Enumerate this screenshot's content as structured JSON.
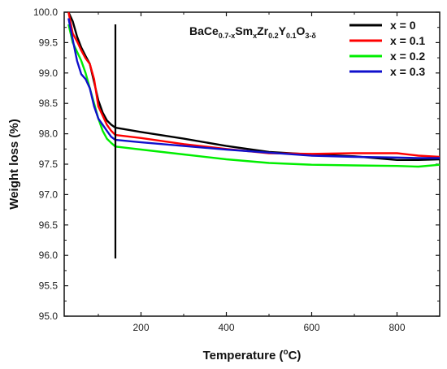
{
  "chart_data": {
    "type": "line",
    "title": "",
    "xlabel": "Temperature (°C)",
    "xlabel_prefix": "Temperature (",
    "xlabel_degree": "o",
    "xlabel_suffix": "C)",
    "ylabel": "Weight loss (%)",
    "xlim": [
      20,
      900
    ],
    "ylim": [
      95.0,
      100.0
    ],
    "x_ticks": [
      200,
      400,
      600,
      800
    ],
    "x_tick_labels": [
      "200",
      "400",
      "600",
      "800"
    ],
    "y_ticks": [
      95.0,
      95.5,
      96.0,
      96.5,
      97.0,
      97.5,
      98.0,
      98.5,
      99.0,
      99.5,
      100.0
    ],
    "y_tick_labels": [
      "95.0",
      "95.5",
      "96.0",
      "96.5",
      "97.0",
      "97.5",
      "98.0",
      "98.5",
      "99.0",
      "99.5",
      "100.0"
    ],
    "grid": false,
    "legend_position": "top-right",
    "formula": [
      {
        "text": "BaCe",
        "sub": false
      },
      {
        "text": "0.7-x",
        "sub": true
      },
      {
        "text": "Sm",
        "sub": false
      },
      {
        "text": "x",
        "sub": true
      },
      {
        "text": "Zr",
        "sub": false
      },
      {
        "text": "0.2",
        "sub": true
      },
      {
        "text": "Y",
        "sub": false
      },
      {
        "text": "0.1",
        "sub": true
      },
      {
        "text": "O",
        "sub": false
      },
      {
        "text": "3-δ",
        "sub": true
      }
    ],
    "vertical_marker": {
      "x": 140,
      "y_from": 95.95,
      "y_to": 99.8,
      "color": "#000000"
    },
    "series": [
      {
        "name": "x = 0",
        "color": "#000000",
        "x": [
          30,
          40,
          50,
          60,
          70,
          80,
          90,
          100,
          110,
          120,
          130,
          140,
          200,
          300,
          400,
          500,
          600,
          700,
          800,
          850,
          900
        ],
        "y": [
          100.0,
          99.85,
          99.6,
          99.42,
          99.28,
          99.15,
          98.85,
          98.55,
          98.35,
          98.22,
          98.15,
          98.1,
          98.03,
          97.92,
          97.8,
          97.7,
          97.66,
          97.63,
          97.57,
          97.57,
          97.58
        ]
      },
      {
        "name": "x = 0.1",
        "color": "#ff0000",
        "x": [
          30,
          40,
          50,
          60,
          70,
          80,
          90,
          100,
          110,
          120,
          130,
          140,
          200,
          300,
          400,
          500,
          600,
          700,
          800,
          850,
          900
        ],
        "y": [
          100.0,
          99.65,
          99.52,
          99.37,
          99.24,
          99.15,
          98.9,
          98.45,
          98.3,
          98.15,
          98.05,
          97.98,
          97.93,
          97.83,
          97.75,
          97.68,
          97.67,
          97.68,
          97.68,
          97.64,
          97.62
        ]
      },
      {
        "name": "x = 0.2",
        "color": "#00ee00",
        "x": [
          30,
          40,
          50,
          60,
          70,
          80,
          90,
          100,
          110,
          120,
          130,
          140,
          200,
          300,
          400,
          500,
          600,
          700,
          800,
          850,
          900
        ],
        "y": [
          99.8,
          99.5,
          99.35,
          99.2,
          99.0,
          98.75,
          98.5,
          98.25,
          98.05,
          97.92,
          97.85,
          97.79,
          97.74,
          97.66,
          97.58,
          97.52,
          97.49,
          97.48,
          97.47,
          97.46,
          97.49
        ]
      },
      {
        "name": "x = 0.3",
        "color": "#1010cc",
        "x": [
          30,
          40,
          50,
          60,
          70,
          80,
          90,
          100,
          110,
          120,
          130,
          140,
          200,
          300,
          400,
          500,
          600,
          700,
          800,
          850,
          900
        ],
        "y": [
          99.9,
          99.55,
          99.2,
          98.98,
          98.9,
          98.75,
          98.45,
          98.25,
          98.15,
          98.05,
          97.95,
          97.9,
          97.86,
          97.8,
          97.74,
          97.69,
          97.64,
          97.62,
          97.61,
          97.6,
          97.6
        ]
      }
    ]
  }
}
